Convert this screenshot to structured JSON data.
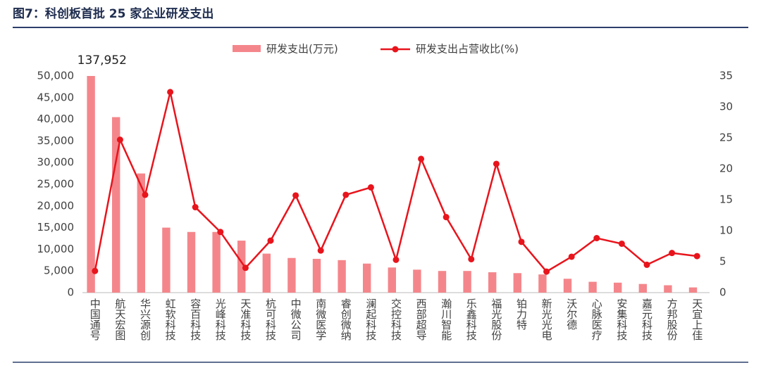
{
  "chart_data": {
    "type": "bar_line",
    "title": "图7：科创板首批 25 家企业研发支出",
    "categories": [
      "中国通号",
      "航天宏图",
      "华兴源创",
      "虹软科技",
      "容百科技",
      "光峰科技",
      "天准科技",
      "杭可科技",
      "中微公司",
      "南微医学",
      "睿创微纳",
      "澜起科技",
      "交控科技",
      "西部超导",
      "瀚川智能",
      "乐鑫科技",
      "福光股份",
      "铂力特",
      "新光光电",
      "沃尔德",
      "心脉医疗",
      "安集科技",
      "嘉元科技",
      "方邦股份",
      "天宜上佳"
    ],
    "series": [
      {
        "name": "研发支出(万元)",
        "type": "bar",
        "color": "#f4868b",
        "values": [
          137952,
          40500,
          27500,
          15000,
          14000,
          14000,
          12000,
          9000,
          8000,
          7800,
          7500,
          6700,
          5800,
          5300,
          5000,
          5000,
          4700,
          4500,
          4200,
          3200,
          2500,
          2300,
          2000,
          1700,
          1200
        ],
        "value_labels": [
          "137,952",
          null,
          null,
          null,
          null,
          null,
          null,
          null,
          null,
          null,
          null,
          null,
          null,
          null,
          null,
          null,
          null,
          null,
          null,
          null,
          null,
          null,
          null,
          null,
          null
        ]
      },
      {
        "name": "研发支出占营收比(%)",
        "type": "line",
        "axis": "y2",
        "color": "#e8141c",
        "values": [
          3.5,
          24.7,
          15.8,
          32.4,
          13.8,
          9.8,
          4,
          8.4,
          15.7,
          6.8,
          15.8,
          17,
          5.3,
          21.6,
          12.2,
          5.4,
          20.8,
          8.2,
          3.4,
          5.8,
          8.8,
          7.9,
          4.5,
          6.4,
          5.9
        ]
      }
    ],
    "ylim": [
      0,
      50000
    ],
    "yticks": [
      0,
      {
        "value": 5000,
        "label": "5,000"
      },
      {
        "value": 10000,
        "label": "10,000"
      },
      {
        "value": 15000,
        "label": "15,000"
      },
      {
        "value": 20000,
        "label": "20,000"
      },
      {
        "value": 25000,
        "label": "25,000"
      },
      {
        "value": 30000,
        "label": "30,000"
      },
      {
        "value": 35000,
        "label": "35,000"
      },
      {
        "value": 40000,
        "label": "40,000"
      },
      {
        "value": 45000,
        "label": "45,000"
      },
      {
        "value": 50000,
        "label": "50,000"
      }
    ],
    "y2lim": [
      0,
      35
    ],
    "y2ticks": [
      0,
      5,
      10,
      15,
      20,
      25,
      30,
      35
    ],
    "legend": "top"
  }
}
